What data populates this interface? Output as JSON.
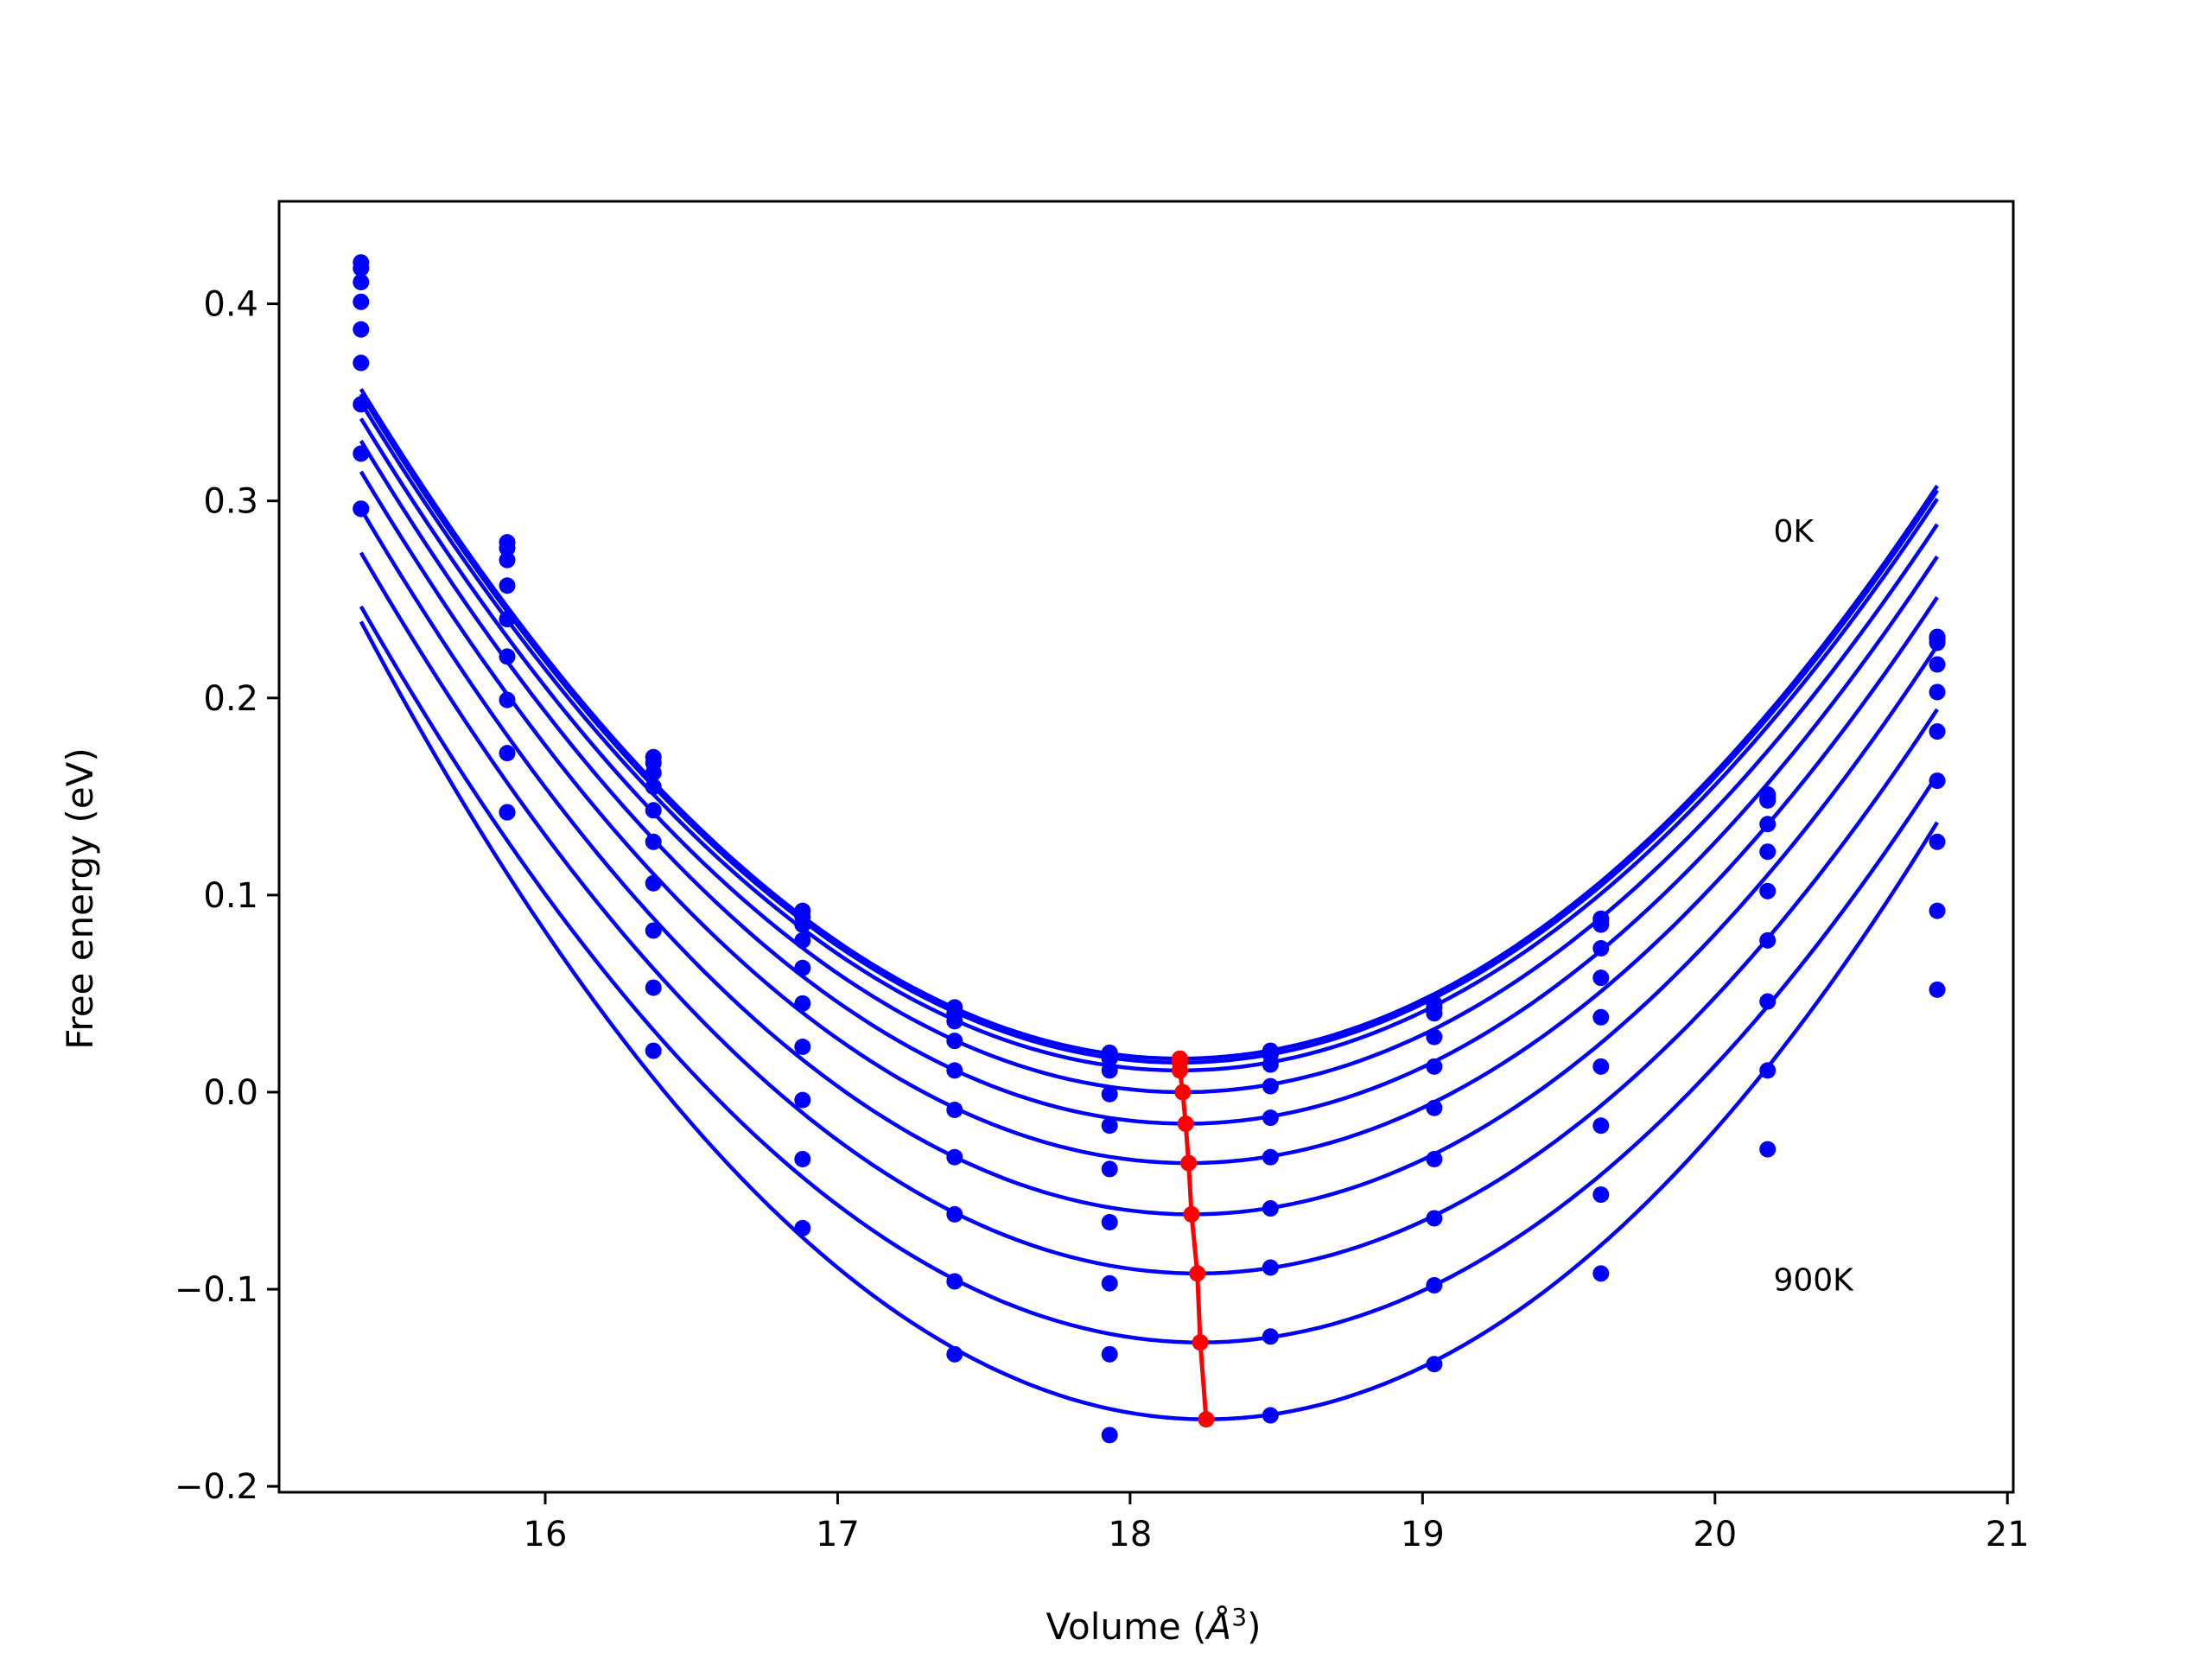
{
  "chart_data": {
    "type": "line",
    "title": "",
    "xlabel": "Volume (Å³)",
    "xlabel_base": "Volume (",
    "xlabel_symbol": "Å",
    "xlabel_sup": "3",
    "xlabel_close": ")",
    "ylabel": "Free energy (eV)",
    "xlim": [
      15.09,
      21.02
    ],
    "ylim": [
      -0.203,
      0.452
    ],
    "xticks": [
      16,
      17,
      18,
      19,
      20,
      21
    ],
    "xtick_labels": [
      "16",
      "17",
      "18",
      "19",
      "20",
      "21"
    ],
    "yticks": [
      -0.2,
      -0.1,
      0.0,
      0.1,
      0.2,
      0.3,
      0.4
    ],
    "ytick_labels": [
      "−0.2",
      "−0.1",
      "0.0",
      "0.1",
      "0.2",
      "0.3",
      "0.4"
    ],
    "grid": false,
    "annotations": [
      {
        "text": "0K",
        "x": 20.2,
        "y": 0.285
      },
      {
        "text": "900K",
        "x": 20.2,
        "y": -0.095
      }
    ],
    "curve_color": "#0000ff",
    "minima_color": "#ff0000",
    "x": [
      15.37,
      15.87,
      16.37,
      16.88,
      17.4,
      17.93,
      18.48,
      19.04,
      19.61,
      20.18,
      20.76
    ],
    "series": [
      {
        "values": [
          0.421,
          0.279,
          0.17,
          0.092,
          0.043,
          0.02,
          0.021,
          0.045,
          0.088,
          0.151,
          0.231
        ],
        "v0": 18.17,
        "emin": 0.017
      },
      {
        "values": [
          0.418,
          0.276,
          0.167,
          0.089,
          0.04,
          0.017,
          0.019,
          0.043,
          0.087,
          0.149,
          0.23
        ],
        "v0": 18.17,
        "emin": 0.015
      },
      {
        "values": [
          0.411,
          0.27,
          0.162,
          0.085,
          0.036,
          0.011,
          0.014,
          0.04,
          0.085,
          0.148,
          0.228
        ],
        "v0": 18.17,
        "emin": 0.011
      },
      {
        "values": [
          0.401,
          0.257,
          0.155,
          0.077,
          0.026,
          -0.001,
          0.003,
          0.028,
          0.073,
          0.136,
          0.217
        ],
        "v0": 18.18,
        "emin": 0.0
      },
      {
        "values": [
          0.387,
          0.24,
          0.143,
          0.063,
          0.011,
          -0.017,
          -0.013,
          0.013,
          0.058,
          0.122,
          0.203
        ],
        "v0": 18.19,
        "emin": -0.016
      },
      {
        "values": [
          0.37,
          0.221,
          0.127,
          0.045,
          -0.009,
          -0.039,
          -0.033,
          -0.008,
          0.038,
          0.102,
          0.183
        ],
        "v0": 18.2,
        "emin": -0.036
      },
      {
        "values": [
          0.349,
          0.199,
          0.106,
          0.023,
          -0.033,
          -0.066,
          -0.059,
          -0.034,
          0.013,
          0.077,
          0.158
        ],
        "v0": 18.21,
        "emin": -0.062
      },
      {
        "values": [
          0.324,
          0.172,
          0.082,
          -0.004,
          -0.062,
          -0.097,
          -0.089,
          -0.064,
          -0.017,
          0.046,
          0.127
        ],
        "v0": 18.23,
        "emin": -0.092
      },
      {
        "values": [
          0.296,
          0.142,
          0.053,
          -0.034,
          -0.096,
          -0.133,
          -0.124,
          -0.098,
          -0.052,
          0.011,
          0.092
        ],
        "v0": 18.24,
        "emin": -0.127
      },
      {
        "values": [
          0.296,
          0.142,
          0.021,
          -0.069,
          -0.133,
          -0.174,
          -0.164,
          -0.138,
          -0.092,
          -0.029,
          0.052
        ],
        "v0": 18.26,
        "emin": -0.166
      }
    ],
    "equilibrium_line": {
      "x": [
        18.17,
        18.17,
        18.17,
        18.18,
        18.19,
        18.2,
        18.21,
        18.23,
        18.24,
        18.26
      ],
      "y": [
        0.017,
        0.015,
        0.011,
        0.0,
        -0.016,
        -0.036,
        -0.062,
        -0.092,
        -0.127,
        -0.166
      ]
    }
  }
}
